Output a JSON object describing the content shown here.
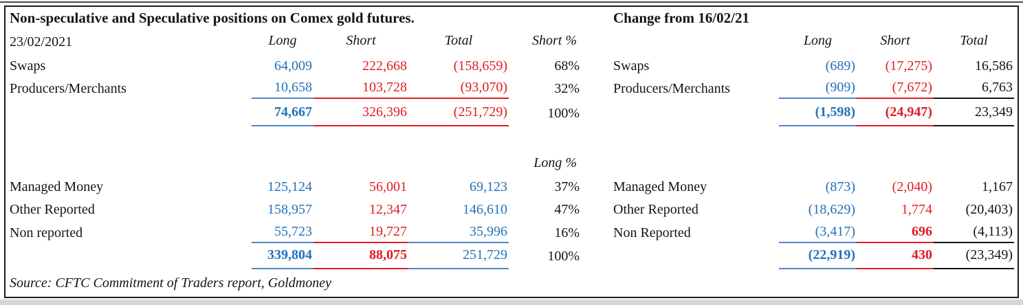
{
  "colors": {
    "long_blue": "#2272b9",
    "short_red": "#e11b22",
    "ink": "#141414",
    "blue_border": "#4f86c6"
  },
  "left_table": {
    "title": "Non-speculative and Speculative positions on Comex gold futures.",
    "date_label": "23/02/2021",
    "headers": {
      "long": "Long",
      "short": "Short",
      "total": "Total",
      "short_pct": "Short %",
      "long_pct": "Long %"
    },
    "top_rows": [
      {
        "label": "Swaps",
        "long": "64,009",
        "short": "222,668",
        "total": "(158,659)",
        "pct": "68%"
      },
      {
        "label": "Producers/Merchants",
        "long": "10,658",
        "short": "103,728",
        "total": "(93,070)",
        "pct": "32%"
      }
    ],
    "top_total": {
      "long": "74,667",
      "short": "326,396",
      "total": "(251,729)",
      "pct": "100%"
    },
    "bottom_rows": [
      {
        "label": "Managed Money",
        "long": "125,124",
        "short": "56,001",
        "total": "69,123",
        "pct": "37%"
      },
      {
        "label": "Other Reported",
        "long": "158,957",
        "short": "12,347",
        "total": "146,610",
        "pct": "47%"
      },
      {
        "label": "Non reported",
        "long": "55,723",
        "short": "19,727",
        "total": "35,996",
        "pct": "16%"
      }
    ],
    "bottom_total": {
      "long": "339,804",
      "short": "88,075",
      "total": "251,729",
      "pct": "100%"
    },
    "source": "Source: CFTC Commitment of Traders report, Goldmoney"
  },
  "right_table": {
    "title": "Change from 16/02/21",
    "headers": {
      "long": "Long",
      "short": "Short",
      "total": "Total"
    },
    "top_rows": [
      {
        "label": "Swaps",
        "long": "(689)",
        "short": "(17,275)",
        "total": "16,586"
      },
      {
        "label": "Producers/Merchants",
        "long": "(909)",
        "short": "(7,672)",
        "total": "6,763"
      }
    ],
    "top_total": {
      "long": "(1,598)",
      "short": "(24,947)",
      "total": "23,349"
    },
    "bottom_rows": [
      {
        "label": "Managed Money",
        "long": "(873)",
        "short": "(2,040)",
        "total": "1,167"
      },
      {
        "label": "Other Reported",
        "long": "(18,629)",
        "short": "1,774",
        "total": "(20,403)"
      },
      {
        "label": "Non Reported",
        "long": "(3,417)",
        "short": "696",
        "total": "(4,113)"
      }
    ],
    "bottom_total": {
      "long": "(22,919)",
      "short": "430",
      "total": "(23,349)"
    }
  }
}
